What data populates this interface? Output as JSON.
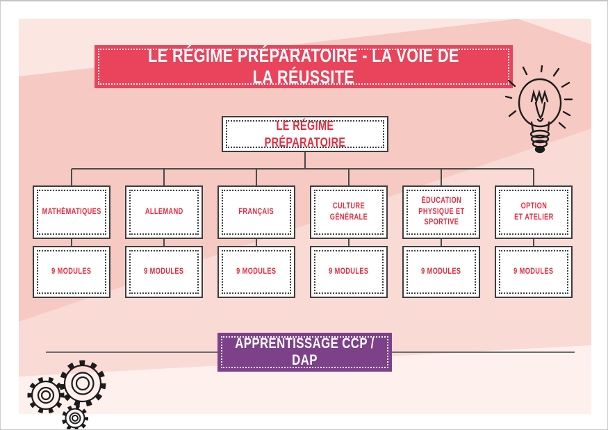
{
  "header": {
    "title": "LE RÉGIME PRÉPARATOIRE - LA VOIE DE LA RÉUSSITE"
  },
  "chart": {
    "type": "org-tree",
    "root_label": "LE RÉGIME PRÉPARATOIRE",
    "columns": [
      {
        "subject": "MATHÉMATIQUES",
        "modules": "9 MODULES"
      },
      {
        "subject": "ALLEMAND",
        "modules": "9 MODULES"
      },
      {
        "subject": "FRANÇAIS",
        "modules": "9 MODULES"
      },
      {
        "subject": "CULTURE\nGÉNÉRALE",
        "modules": "9 MODULES"
      },
      {
        "subject": "ÉDUCATION\nPHYSIQUE ET\nSPORTIVE",
        "modules": "9 MODULES"
      },
      {
        "subject": "OPTION\nET ATELIER",
        "modules": "9 MODULES"
      }
    ]
  },
  "footer": {
    "label": "APPRENTISSAGE CCP / DAP"
  },
  "decorations": {
    "icons": [
      "lightbulb-doodle-icon",
      "gears-doodle-icon"
    ]
  },
  "colors": {
    "red-banner": "#e9445b",
    "red-text": "#e9293d",
    "purple": "#7d4189",
    "border": "#3d3d3d",
    "connector": "#4a4a4a",
    "line": "#6b6b6b",
    "pink-base": "#f9dad5",
    "pink-dark": "#f6c9c3",
    "pink-light": "#fce6e1",
    "pink-white": "#fdf0ed",
    "ink": "#1c1c1c"
  }
}
